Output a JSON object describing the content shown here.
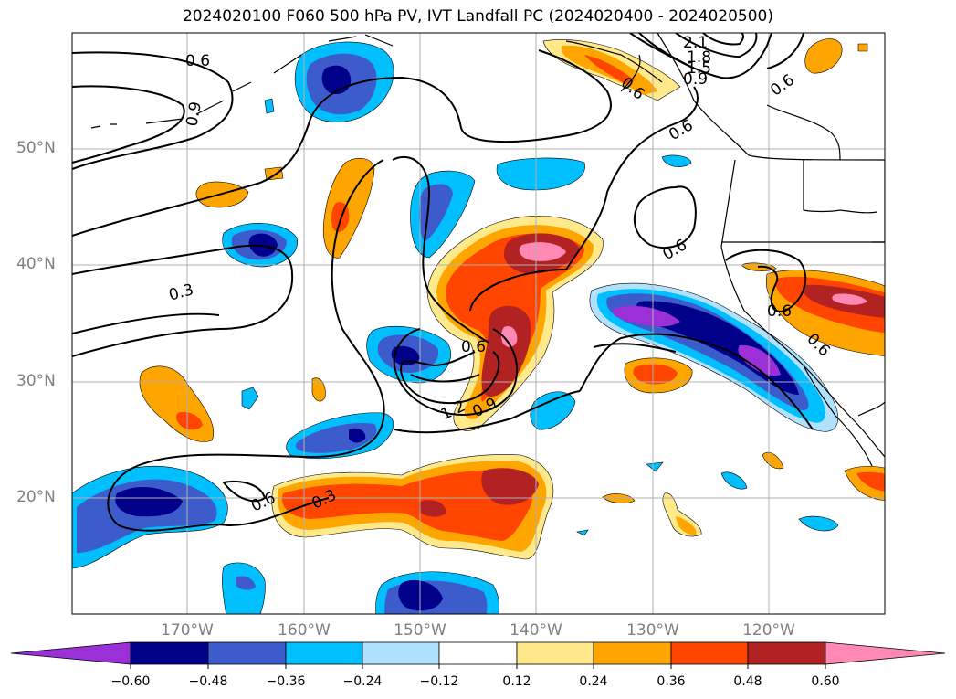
{
  "title": "2024020100 F060 500 hPa PV, IVT Landfall PC (2024020400 - 2024020500)",
  "latitude_labels": [
    "50°N",
    "40°N",
    "30°N",
    "20°N"
  ],
  "longitude_labels": [
    "170°W",
    "160°W",
    "150°W",
    "140°W",
    "130°W",
    "120°W"
  ],
  "contour_labels": [
    "0.6",
    "0.9",
    "0.3",
    "0.6",
    "0.6",
    "0.6",
    "0.9",
    "1.2",
    "0.6",
    "0.3",
    "0.6",
    "0.6",
    "0.6",
    "2.1",
    "1.8",
    "1.5",
    "0.9",
    "0.6"
  ],
  "colorbar": {
    "ticks": [
      "−0.60",
      "−0.48",
      "−0.36",
      "−0.24",
      "−0.12",
      "0.12",
      "0.24",
      "0.36",
      "0.48",
      "0.60"
    ],
    "colors": [
      "#9b30d9",
      "#00008b",
      "#3d5ccc",
      "#00bfff",
      "#b0e2ff",
      "#ffffff",
      "#ffe98a",
      "#ffa500",
      "#ff4500",
      "#b22222",
      "#ff89b4"
    ]
  },
  "fill_colors": {
    "neg_light": "#b0e2ff",
    "neg_cyan": "#00bfff",
    "neg_blue": "#3d5ccc",
    "neg_navy": "#00008b",
    "neg_purple": "#9b30d9",
    "pos_yellow": "#ffe98a",
    "pos_orange": "#ffa500",
    "pos_red": "#ff4500",
    "pos_darkred": "#b22222",
    "pos_pink": "#ff89b4"
  }
}
